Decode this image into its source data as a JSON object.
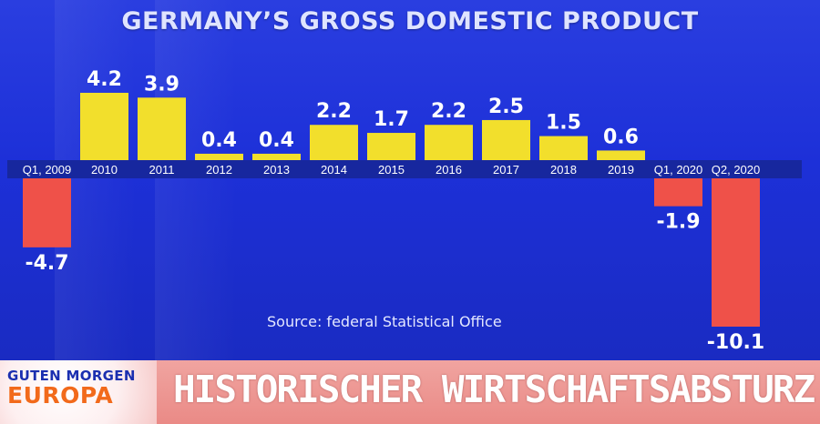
{
  "chart_data": {
    "type": "bar",
    "title": "GERMANY’S GROSS DOMESTIC PRODUCT",
    "categories": [
      "Q1, 2009",
      "2010",
      "2011",
      "2012",
      "2013",
      "2014",
      "2015",
      "2016",
      "2017",
      "2018",
      "2019",
      "Q1, 2020",
      "Q2, 2020"
    ],
    "values": [
      -4.7,
      4.2,
      3.9,
      0.4,
      0.4,
      2.2,
      1.7,
      2.2,
      2.5,
      1.5,
      0.6,
      -1.9,
      -10.1
    ],
    "value_labels": [
      "-4.7",
      "4.2",
      "3.9",
      "0.4",
      "0.4",
      "2.2",
      "1.7",
      "2.2",
      "2.5",
      "1.5",
      "0.6",
      "-1.9",
      "-10.1"
    ],
    "xlabel": "",
    "ylabel": "",
    "ylim": [
      -10.1,
      4.2
    ],
    "grid": false,
    "colors": {
      "positive": "#f2df2c",
      "negative": "#ef5149",
      "background": "#1f33d8",
      "axis_band": "#17279e"
    },
    "source": "Source: federal Statistical Office"
  },
  "banner": {
    "logo_line1": "GUTEN MORGEN",
    "logo_line2": "EUROPA",
    "headline": "HISTORISCHER WIRTSCHAFTSABSTURZ"
  }
}
